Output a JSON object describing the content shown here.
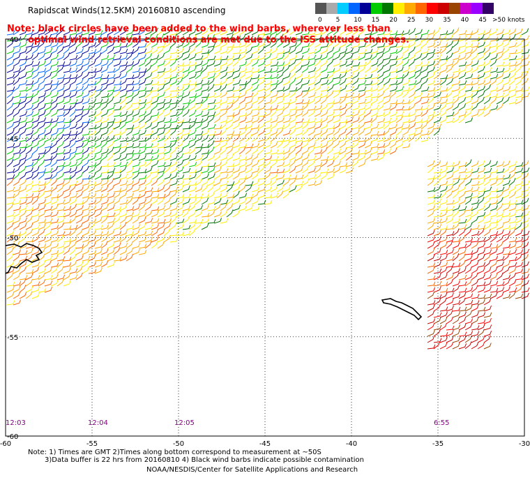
{
  "title": "Rapidscat Winds(12.5KM) 20160810 ascending",
  "note": {
    "line1": "Note: black circles have been added to the wind barbs, wherever less than",
    "line2": "optimal wind retrieval conditions are met due to the ISS attitude changes."
  },
  "legend": {
    "unit_label": ">50 knots",
    "ticks": [
      "0",
      "5",
      "10",
      "15",
      "20",
      "25",
      "30",
      "35",
      "40",
      "45"
    ],
    "colors": [
      "#555555",
      "#aaaaaa",
      "#00ccff",
      "#0066ff",
      "#000099",
      "#00cc00",
      "#007700",
      "#ffee00",
      "#ffaa00",
      "#ff6600",
      "#ff0000",
      "#cc0000",
      "#994400",
      "#cc00cc",
      "#9900ff",
      "#330066"
    ]
  },
  "map": {
    "lon_ticks": [
      "-60",
      "-55",
      "-50",
      "-45",
      "-40",
      "-35",
      "-30"
    ],
    "lat_ticks": [
      "-40",
      "-45",
      "-50",
      "-55",
      "-60"
    ],
    "lon_range": [
      -60,
      -30
    ],
    "lat_range": [
      -60,
      -40
    ],
    "time_labels": [
      {
        "text": "12:03",
        "lon": -60
      },
      {
        "text": "12:04",
        "lon": -55
      },
      {
        "text": "12:05",
        "lon": -50
      },
      {
        "text": "6:55",
        "lon": -35
      }
    ]
  },
  "footer": {
    "line1": "Note: 1) Times are GMT 2)Times along bottom correspond to measurement at ~50S",
    "line2": "3)Data buffer is 22 hrs from 20160810 4) Black wind barbs indicate possible contamination",
    "line3": "NOAA/NESDIS/Center for Satellite Applications and Research"
  },
  "colors": {
    "note_text": "#ff0000",
    "time_labels": "#800080"
  }
}
